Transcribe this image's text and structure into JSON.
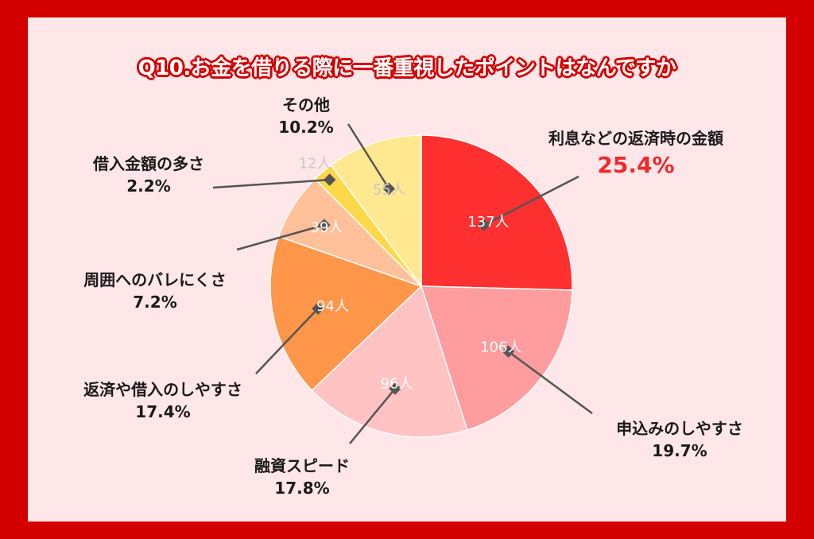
{
  "title": "Q10.お金を借りる際に一番重視したポイントはなんですか",
  "chart_data": {
    "type": "pie",
    "title": "Q10.お金を借りる際に一番重視したポイントはなんですか",
    "slices": [
      {
        "label": "利息などの返済時の金額",
        "count": 137,
        "count_label": "137人",
        "percent": 25.4,
        "percent_label": "25.4%",
        "color": "#ff3030",
        "count_color": "#ffffff",
        "highlight": true
      },
      {
        "label": "申込みのしやすさ",
        "count": 106,
        "count_label": "106人",
        "percent": 19.7,
        "percent_label": "19.7%",
        "color": "#ff9c9e",
        "count_color": "#ffffff",
        "highlight": false
      },
      {
        "label": "融資スピード",
        "count": 96,
        "count_label": "96人",
        "percent": 17.8,
        "percent_label": "17.8%",
        "color": "#ffc3c4",
        "count_color": "#ffffff",
        "highlight": false
      },
      {
        "label": "返済や借入のしやすさ",
        "count": 94,
        "count_label": "94人",
        "percent": 17.4,
        "percent_label": "17.4%",
        "color": "#ff964a",
        "count_color": "#ffffff",
        "highlight": false
      },
      {
        "label": "周囲へのバレにくさ",
        "count": 39,
        "count_label": "39人",
        "percent": 7.2,
        "percent_label": "7.2%",
        "color": "#ffc09a",
        "count_color": "#ffffff",
        "highlight": false
      },
      {
        "label": "借入金額の多さ",
        "count": 12,
        "count_label": "12人",
        "percent": 2.2,
        "percent_label": "2.2%",
        "color": "#ffd84a",
        "count_color": "#c8c8c8",
        "highlight": false
      },
      {
        "label": "その他",
        "count": 55,
        "count_label": "55人",
        "percent": 10.2,
        "percent_label": "10.2%",
        "color": "#ffe890",
        "count_color": "#c8c8c8",
        "highlight": false
      }
    ]
  }
}
